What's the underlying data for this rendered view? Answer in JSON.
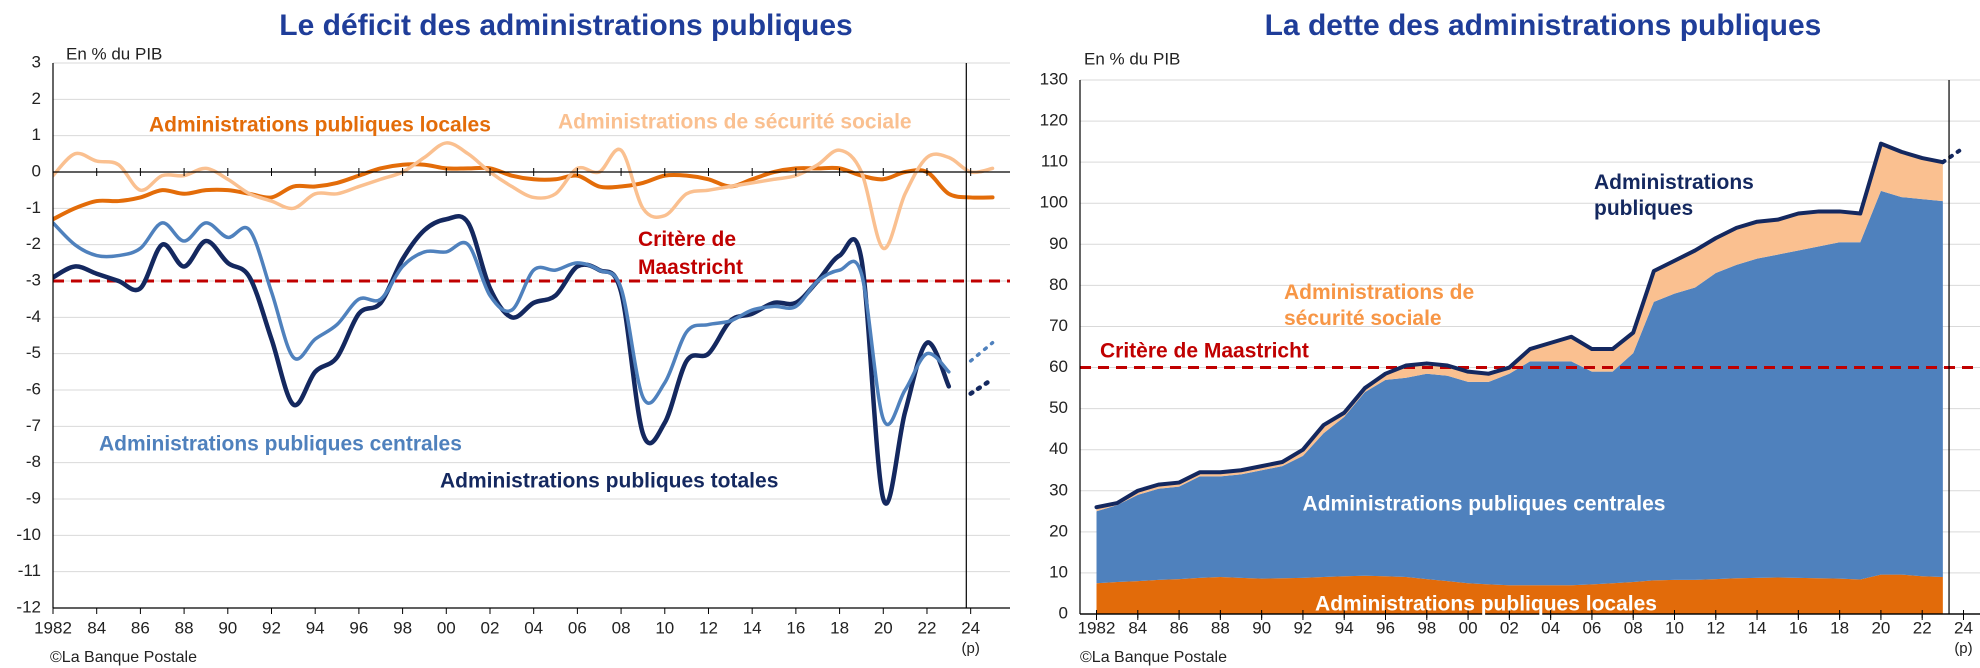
{
  "chart_data": [
    {
      "type": "line",
      "title": "Le déficit des administrations publiques",
      "unit_label": "En % du PIB",
      "source": "©La Banque Postale",
      "forecast_label": "(p)",
      "x": [
        1982,
        1983,
        1984,
        1985,
        1986,
        1987,
        1988,
        1989,
        1990,
        1991,
        1992,
        1993,
        1994,
        1995,
        1996,
        1997,
        1998,
        1999,
        2000,
        2001,
        2002,
        2003,
        2004,
        2005,
        2006,
        2007,
        2008,
        2009,
        2010,
        2011,
        2012,
        2013,
        2014,
        2015,
        2016,
        2017,
        2018,
        2019,
        2020,
        2021,
        2022,
        2023,
        2024,
        2025
      ],
      "series": [
        {
          "name": "Administrations publiques totales",
          "color": "#14285f",
          "forecast_style": "dotted",
          "values": [
            -2.9,
            -2.6,
            -2.8,
            -3.0,
            -3.2,
            -2.0,
            -2.6,
            -1.9,
            -2.5,
            -2.9,
            -4.6,
            -6.4,
            -5.5,
            -5.1,
            -3.9,
            -3.6,
            -2.4,
            -1.6,
            -1.3,
            -1.4,
            -3.2,
            -4.0,
            -3.6,
            -3.4,
            -2.6,
            -2.7,
            -3.3,
            -7.2,
            -6.9,
            -5.2,
            -5.0,
            -4.1,
            -3.9,
            -3.6,
            -3.6,
            -3.0,
            -2.3,
            -2.4,
            -9.0,
            -6.6,
            -4.7,
            -5.9,
            -6.1,
            -5.7
          ]
        },
        {
          "name": "Administrations publiques centrales",
          "color": "#4f81bd",
          "forecast_style": "dotted",
          "values": [
            -1.4,
            -2.0,
            -2.3,
            -2.3,
            -2.1,
            -1.4,
            -1.9,
            -1.4,
            -1.8,
            -1.6,
            -3.3,
            -5.1,
            -4.6,
            -4.2,
            -3.5,
            -3.5,
            -2.6,
            -2.2,
            -2.2,
            -2.0,
            -3.4,
            -3.8,
            -2.7,
            -2.7,
            -2.5,
            -2.7,
            -3.2,
            -6.2,
            -5.8,
            -4.4,
            -4.2,
            -4.1,
            -3.8,
            -3.7,
            -3.7,
            -3.0,
            -2.7,
            -2.8,
            -6.8,
            -6.0,
            -5.0,
            -5.5,
            -5.2,
            -4.7
          ]
        },
        {
          "name": "Administrations publiques locales",
          "color": "#e36c09",
          "values": [
            -1.3,
            -1.0,
            -0.8,
            -0.8,
            -0.7,
            -0.5,
            -0.6,
            -0.5,
            -0.5,
            -0.6,
            -0.7,
            -0.4,
            -0.4,
            -0.3,
            -0.1,
            0.1,
            0.2,
            0.2,
            0.1,
            0.1,
            0.1,
            -0.1,
            -0.2,
            -0.2,
            -0.1,
            -0.4,
            -0.4,
            -0.3,
            -0.1,
            -0.1,
            -0.2,
            -0.4,
            -0.2,
            0.0,
            0.1,
            0.1,
            0.1,
            -0.1,
            -0.2,
            0.0,
            0.0,
            -0.6,
            -0.7,
            -0.7
          ]
        },
        {
          "name": "Administrations de sécurité sociale",
          "color": "#fac090",
          "values": [
            -0.1,
            0.5,
            0.3,
            0.2,
            -0.5,
            -0.1,
            -0.1,
            0.1,
            -0.2,
            -0.6,
            -0.8,
            -1.0,
            -0.6,
            -0.6,
            -0.4,
            -0.2,
            0.0,
            0.4,
            0.8,
            0.5,
            0.0,
            -0.4,
            -0.7,
            -0.6,
            0.1,
            0.0,
            0.6,
            -1.0,
            -1.2,
            -0.6,
            -0.5,
            -0.4,
            -0.3,
            -0.2,
            -0.1,
            0.2,
            0.6,
            0.0,
            -2.1,
            -0.6,
            0.4,
            0.4,
            0.0,
            0.1
          ]
        }
      ],
      "reference": {
        "value": -3,
        "label": "Critère de Maastricht",
        "color": "#c00000"
      },
      "forecast_from": 2024,
      "forecast_connect": false,
      "divider_x": 2023.8,
      "smooth": true,
      "xlim": [
        1982,
        2025.8
      ],
      "xticks": [
        1982,
        {
          "value": 1984,
          "label": "84"
        },
        {
          "value": 1986,
          "label": "86"
        },
        {
          "value": 1988,
          "label": "88"
        },
        {
          "value": 1990,
          "label": "90"
        },
        {
          "value": 1992,
          "label": "92"
        },
        {
          "value": 1994,
          "label": "94"
        },
        {
          "value": 1996,
          "label": "96"
        },
        {
          "value": 1998,
          "label": "98"
        },
        {
          "value": 2000,
          "label": "00"
        },
        {
          "value": 2002,
          "label": "02"
        },
        {
          "value": 2004,
          "label": "04"
        },
        {
          "value": 2006,
          "label": "06"
        },
        {
          "value": 2008,
          "label": "08"
        },
        {
          "value": 2010,
          "label": "10"
        },
        {
          "value": 2012,
          "label": "12"
        },
        {
          "value": 2014,
          "label": "14"
        },
        {
          "value": 2016,
          "label": "16"
        },
        {
          "value": 2018,
          "label": "18"
        },
        {
          "value": 2020,
          "label": "20"
        },
        {
          "value": 2022,
          "label": "22"
        },
        {
          "value": 2024,
          "label": "24"
        }
      ],
      "ylim": [
        -12,
        3
      ],
      "yticks": [
        3,
        2,
        1,
        0,
        -1,
        -2,
        -3,
        -4,
        -5,
        -6,
        -7,
        -8,
        -9,
        -10,
        -11,
        -12
      ],
      "grid": true
    },
    {
      "type": "stacked_area",
      "title": "La dette des administrations publiques",
      "unit_label": "En % du PIB",
      "source": "©La Banque Postale",
      "forecast_label": "(p)",
      "x": [
        1982,
        1983,
        1984,
        1985,
        1986,
        1987,
        1988,
        1989,
        1990,
        1991,
        1992,
        1993,
        1994,
        1995,
        1996,
        1997,
        1998,
        1999,
        2000,
        2001,
        2002,
        2003,
        2004,
        2005,
        2006,
        2007,
        2008,
        2009,
        2010,
        2011,
        2012,
        2013,
        2014,
        2015,
        2016,
        2017,
        2018,
        2019,
        2020,
        2021,
        2022,
        2023,
        2024
      ],
      "series": [
        {
          "name": "Administrations publiques locales",
          "color": "#e26b0a",
          "kind": "area",
          "values": [
            7.5,
            7.8,
            8.0,
            8.3,
            8.5,
            8.8,
            9.0,
            8.8,
            8.6,
            8.7,
            8.8,
            9.0,
            9.2,
            9.3,
            9.2,
            9.0,
            8.5,
            8.0,
            7.5,
            7.2,
            7.0,
            7.0,
            7.0,
            7.0,
            7.2,
            7.5,
            7.8,
            8.2,
            8.3,
            8.3,
            8.5,
            8.7,
            8.8,
            8.9,
            8.8,
            8.7,
            8.6,
            8.4,
            9.6,
            9.6,
            9.2,
            9.0,
            null
          ]
        },
        {
          "name": "Administrations publiques centrales",
          "color": "#4f81bd",
          "kind": "area",
          "values": [
            17.5,
            18.7,
            21.0,
            22.2,
            22.5,
            24.7,
            24.5,
            25.2,
            26.4,
            27.3,
            29.7,
            35.0,
            38.8,
            44.7,
            47.8,
            48.5,
            50.0,
            50.0,
            49.0,
            49.3,
            51.5,
            54.5,
            54.5,
            54.5,
            51.8,
            51.5,
            55.7,
            67.8,
            69.7,
            71.2,
            74.5,
            76.3,
            77.7,
            78.6,
            79.7,
            80.8,
            81.9,
            82.1,
            93.4,
            91.9,
            91.8,
            91.5,
            null
          ]
        },
        {
          "name": "Administrations de sécurité sociale",
          "color": "#fac090",
          "kind": "area",
          "values": [
            1,
            0.5,
            1,
            1,
            1,
            1,
            1,
            1,
            1,
            1,
            1.5,
            2,
            1,
            1,
            1.5,
            3,
            2.5,
            2.5,
            2.5,
            2,
            1.5,
            3,
            4.5,
            6,
            5.5,
            5.5,
            5,
            7.5,
            8,
            9,
            8.5,
            9,
            9,
            8.5,
            9,
            8.5,
            7.5,
            7,
            11.5,
            11,
            10,
            9.5,
            null
          ]
        },
        {
          "name": "Administrations publiques",
          "color": "#14285f",
          "kind": "line",
          "forecast_style": "dotted",
          "values": [
            26,
            27,
            30,
            31.5,
            32,
            34.5,
            34.5,
            35,
            36,
            37,
            40,
            46,
            49,
            55,
            58.5,
            60.5,
            61,
            60.5,
            59,
            58.5,
            60,
            64.5,
            66,
            67.5,
            64.5,
            64.5,
            68.5,
            83.5,
            86,
            88.5,
            91.5,
            94,
            95.5,
            96,
            97.5,
            98,
            98,
            97.5,
            114.5,
            112.5,
            111,
            110,
            113.5
          ]
        }
      ],
      "reference": {
        "value": 60,
        "label": "Critère de Maastricht",
        "color": "#c00000"
      },
      "forecast_from": 2024,
      "forecast_connect": true,
      "divider_x": 2023.3,
      "smooth": false,
      "xlim": [
        1981.2,
        2024.8
      ],
      "xticks": [
        1982,
        {
          "value": 1984,
          "label": "84"
        },
        {
          "value": 1986,
          "label": "86"
        },
        {
          "value": 1988,
          "label": "88"
        },
        {
          "value": 1990,
          "label": "90"
        },
        {
          "value": 1992,
          "label": "92"
        },
        {
          "value": 1994,
          "label": "94"
        },
        {
          "value": 1996,
          "label": "96"
        },
        {
          "value": 1998,
          "label": "98"
        },
        {
          "value": 2000,
          "label": "00"
        },
        {
          "value": 2002,
          "label": "02"
        },
        {
          "value": 2004,
          "label": "04"
        },
        {
          "value": 2006,
          "label": "06"
        },
        {
          "value": 2008,
          "label": "08"
        },
        {
          "value": 2010,
          "label": "10"
        },
        {
          "value": 2012,
          "label": "12"
        },
        {
          "value": 2014,
          "label": "14"
        },
        {
          "value": 2016,
          "label": "16"
        },
        {
          "value": 2018,
          "label": "18"
        },
        {
          "value": 2020,
          "label": "20"
        },
        {
          "value": 2022,
          "label": "22"
        },
        {
          "value": 2024,
          "label": "24"
        }
      ],
      "ylim": [
        0,
        130
      ],
      "yticks": [
        0,
        10,
        20,
        30,
        40,
        50,
        60,
        70,
        80,
        90,
        100,
        110,
        120,
        130
      ],
      "grid": true
    }
  ]
}
